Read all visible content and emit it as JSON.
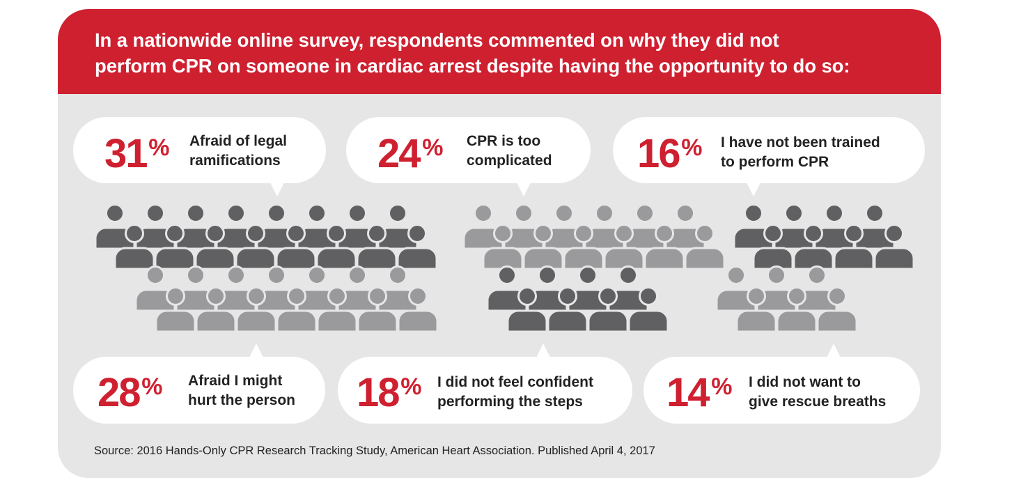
{
  "title_lines": [
    "In a nationwide online survey, respondents commented on why they did not",
    "perform CPR on someone in cardiac arrest despite having the opportunity to do so:"
  ],
  "source": "Source: 2016 Hands-Only CPR Research Tracking Study, American Heart Association. Published April 4, 2017",
  "colors": {
    "accent": "#cf2030",
    "panel": "#e6e6e7",
    "figure_dark": "#606062",
    "figure_light": "#9a9a9c",
    "text": "#222222"
  },
  "chart_data": {
    "type": "pictograph",
    "unit": "%",
    "items": [
      {
        "value": 31,
        "label_lines": [
          "Afraid of legal",
          "ramifications"
        ]
      },
      {
        "value": 24,
        "label_lines": [
          "CPR is too",
          "complicated"
        ]
      },
      {
        "value": 16,
        "label_lines": [
          "I have not been trained",
          "to perform CPR"
        ]
      },
      {
        "value": 28,
        "label_lines": [
          "Afraid I might",
          "hurt the person"
        ]
      },
      {
        "value": 18,
        "label_lines": [
          "I did not feel confident",
          "performing the steps"
        ]
      },
      {
        "value": 14,
        "label_lines": [
          "I did not want to",
          "give rescue breaths"
        ]
      }
    ]
  }
}
